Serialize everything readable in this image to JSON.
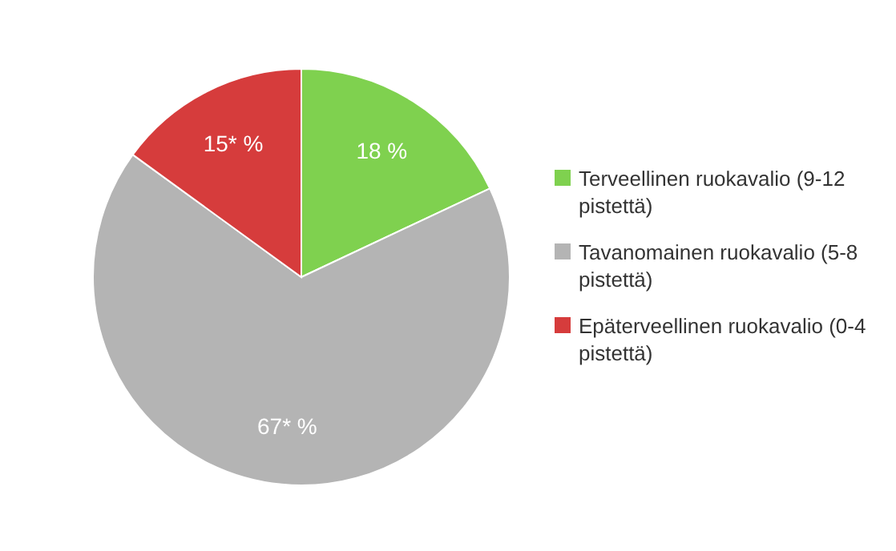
{
  "chart_data": {
    "type": "pie",
    "categories": [
      "Terveellinen ruokavalio (9-12 pistettä)",
      "Tavanomainen ruokavalio (5-8 pistettä)",
      "Epäterveellinen ruokavalio (0-4 pistettä)"
    ],
    "values": [
      18,
      67,
      15
    ],
    "colors": [
      "#7fd14f",
      "#b4b4b4",
      "#d63c3c"
    ],
    "value_labels": [
      "18 %",
      "67* %",
      "15* %"
    ],
    "legend": "right"
  }
}
